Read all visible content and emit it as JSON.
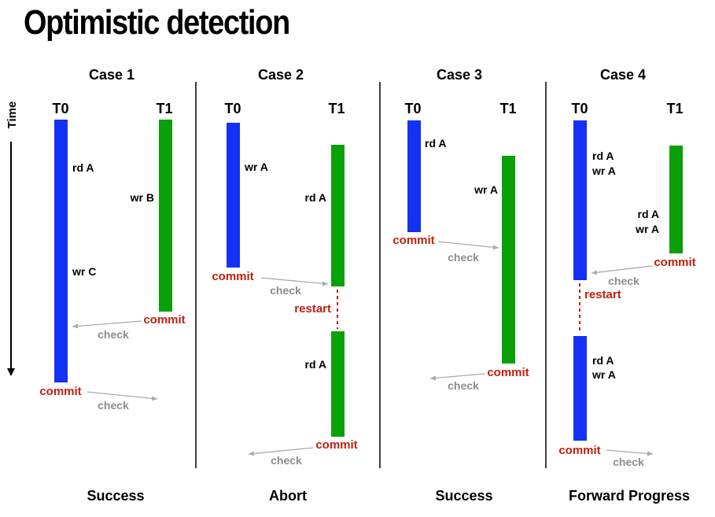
{
  "title": "Optimistic detection",
  "time_label": "Time",
  "cases": [
    {
      "heading": "Case 1",
      "t0": "T0",
      "t1": "T1",
      "outcome": "Success",
      "ops": [
        "rd A",
        "wr B",
        "wr C"
      ],
      "events": [
        "commit",
        "check",
        "commit",
        "check"
      ]
    },
    {
      "heading": "Case 2",
      "t0": "T0",
      "t1": "T1",
      "outcome": "Abort",
      "ops": [
        "wr A",
        "rd A",
        "rd A"
      ],
      "events": [
        "commit",
        "check",
        "restart",
        "commit",
        "check"
      ]
    },
    {
      "heading": "Case 3",
      "t0": "T0",
      "t1": "T1",
      "outcome": "Success",
      "ops": [
        "rd A",
        "wr A"
      ],
      "events": [
        "commit",
        "check",
        "commit",
        "check"
      ]
    },
    {
      "heading": "Case 4",
      "t0": "T0",
      "t1": "T1",
      "outcome": "Forward Progress",
      "ops": [
        "rd A",
        "wr A",
        "rd A",
        "wr A",
        "rd A",
        "wr A"
      ],
      "events": [
        "commit",
        "check",
        "restart",
        "commit",
        "check"
      ]
    }
  ],
  "colors": {
    "t0": "#1432f5",
    "t1": "#0aa00a",
    "event": "#c0200e",
    "check": "#8c8c8c",
    "divider": "#000000"
  }
}
